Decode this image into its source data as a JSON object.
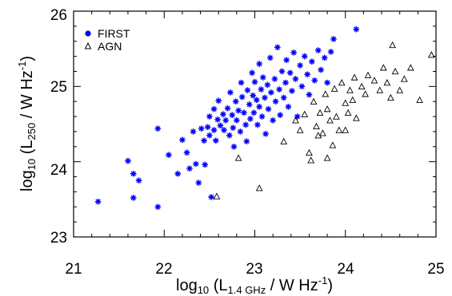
{
  "chart_data": {
    "type": "scatter",
    "xlabel": {
      "pre": "log",
      "base": "10",
      "mid": " (L",
      "sub": "1.4 GHz",
      "post": " / W Hz",
      "sup": "-1",
      "end": ")"
    },
    "ylabel": {
      "pre": "log",
      "base": "10",
      "mid": " (L",
      "sub": "250",
      "post": " / W Hz",
      "sup": "-1",
      "end": ")"
    },
    "xlim": [
      21,
      25
    ],
    "ylim": [
      23,
      26
    ],
    "xticks": [
      "21",
      "22",
      "23",
      "24",
      "25"
    ],
    "yticks": [
      "23",
      "24",
      "25",
      "26"
    ],
    "legend_position": "top-left",
    "series": [
      {
        "name": "FIRST",
        "marker": "asterisk",
        "color": "#0000ff",
        "points": [
          [
            21.27,
            23.47
          ],
          [
            21.6,
            24.01
          ],
          [
            21.66,
            23.84
          ],
          [
            21.66,
            23.52
          ],
          [
            21.72,
            23.75
          ],
          [
            21.93,
            24.44
          ],
          [
            21.93,
            23.4
          ],
          [
            22.05,
            24.09
          ],
          [
            22.15,
            23.84
          ],
          [
            22.2,
            24.29
          ],
          [
            22.25,
            24.12
          ],
          [
            22.28,
            23.91
          ],
          [
            22.32,
            24.4
          ],
          [
            22.35,
            23.97
          ],
          [
            22.38,
            23.72
          ],
          [
            22.41,
            24.44
          ],
          [
            22.44,
            24.28
          ],
          [
            22.45,
            23.96
          ],
          [
            22.48,
            24.46
          ],
          [
            22.5,
            24.6
          ],
          [
            22.5,
            24.35
          ],
          [
            22.52,
            23.53
          ],
          [
            22.55,
            24.7
          ],
          [
            22.55,
            24.42
          ],
          [
            22.57,
            24.28
          ],
          [
            22.59,
            24.56
          ],
          [
            22.6,
            24.81
          ],
          [
            22.62,
            24.48
          ],
          [
            22.65,
            24.63
          ],
          [
            22.66,
            24.42
          ],
          [
            22.68,
            24.55
          ],
          [
            22.7,
            24.71
          ],
          [
            22.72,
            24.35
          ],
          [
            22.73,
            24.92
          ],
          [
            22.75,
            24.62
          ],
          [
            22.76,
            24.45
          ],
          [
            22.77,
            24.2
          ],
          [
            22.79,
            24.8
          ],
          [
            22.8,
            24.55
          ],
          [
            22.82,
            24.68
          ],
          [
            22.84,
            24.4
          ],
          [
            22.85,
            25.05
          ],
          [
            22.86,
            24.86
          ],
          [
            22.88,
            24.65
          ],
          [
            22.9,
            24.49
          ],
          [
            22.91,
            24.27
          ],
          [
            22.92,
            24.95
          ],
          [
            22.94,
            24.76
          ],
          [
            22.95,
            24.57
          ],
          [
            22.97,
            25.18
          ],
          [
            22.98,
            24.88
          ],
          [
            22.99,
            24.65
          ],
          [
            23.0,
            25.06
          ],
          [
            23.02,
            24.82
          ],
          [
            23.03,
            24.49
          ],
          [
            23.05,
            25.3
          ],
          [
            23.05,
            24.73
          ],
          [
            23.07,
            24.96
          ],
          [
            23.08,
            24.6
          ],
          [
            23.09,
            25.12
          ],
          [
            23.11,
            24.85
          ],
          [
            23.12,
            24.37
          ],
          [
            23.14,
            25.02
          ],
          [
            23.15,
            24.7
          ],
          [
            23.17,
            25.38
          ],
          [
            23.18,
            24.92
          ],
          [
            23.2,
            24.55
          ],
          [
            23.22,
            25.1
          ],
          [
            23.23,
            24.8
          ],
          [
            23.25,
            25.52
          ],
          [
            23.27,
            24.96
          ],
          [
            23.28,
            24.62
          ],
          [
            23.3,
            25.2
          ],
          [
            23.32,
            24.85
          ],
          [
            23.34,
            25.05
          ],
          [
            23.35,
            25.35
          ],
          [
            23.37,
            24.73
          ],
          [
            23.39,
            25.18
          ],
          [
            23.41,
            24.94
          ],
          [
            23.43,
            25.45
          ],
          [
            23.45,
            25.1
          ],
          [
            23.47,
            24.6
          ],
          [
            23.5,
            25.28
          ],
          [
            23.52,
            25.0
          ],
          [
            23.55,
            25.4
          ],
          [
            23.58,
            25.16
          ],
          [
            23.6,
            24.89
          ],
          [
            23.63,
            25.33
          ],
          [
            23.66,
            25.08
          ],
          [
            23.7,
            25.48
          ],
          [
            23.73,
            25.22
          ],
          [
            23.77,
            25.38
          ],
          [
            23.8,
            25.05
          ],
          [
            23.84,
            25.46
          ],
          [
            23.87,
            25.63
          ],
          [
            24.12,
            25.76
          ]
        ]
      },
      {
        "name": "AGN",
        "marker": "triangle",
        "color": "#000000",
        "points": [
          [
            22.58,
            23.54
          ],
          [
            22.82,
            24.05
          ],
          [
            23.05,
            23.65
          ],
          [
            23.32,
            24.27
          ],
          [
            23.45,
            24.55
          ],
          [
            23.5,
            24.42
          ],
          [
            23.55,
            24.63
          ],
          [
            23.6,
            24.12
          ],
          [
            23.65,
            24.8
          ],
          [
            23.68,
            24.47
          ],
          [
            23.72,
            24.65
          ],
          [
            23.75,
            24.38
          ],
          [
            23.78,
            24.9
          ],
          [
            23.8,
            24.7
          ],
          [
            23.83,
            24.55
          ],
          [
            23.86,
            24.22
          ],
          [
            23.88,
            24.97
          ],
          [
            23.9,
            24.6
          ],
          [
            23.93,
            24.42
          ],
          [
            23.96,
            25.05
          ],
          [
            24.0,
            24.78
          ],
          [
            24.03,
            24.65
          ],
          [
            24.05,
            24.95
          ],
          [
            24.08,
            24.82
          ],
          [
            24.1,
            25.12
          ],
          [
            24.12,
            24.58
          ],
          [
            24.18,
            25.0
          ],
          [
            24.22,
            24.9
          ],
          [
            24.25,
            25.15
          ],
          [
            24.32,
            25.08
          ],
          [
            24.38,
            24.95
          ],
          [
            24.42,
            25.25
          ],
          [
            24.46,
            25.05
          ],
          [
            24.5,
            24.85
          ],
          [
            24.52,
            25.55
          ],
          [
            24.55,
            25.2
          ],
          [
            24.6,
            24.95
          ],
          [
            24.65,
            25.1
          ],
          [
            24.72,
            25.25
          ],
          [
            24.82,
            24.82
          ],
          [
            24.95,
            25.42
          ],
          [
            23.8,
            24.05
          ],
          [
            23.62,
            24.02
          ],
          [
            23.7,
            24.35
          ],
          [
            24.0,
            24.42
          ]
        ]
      }
    ]
  }
}
